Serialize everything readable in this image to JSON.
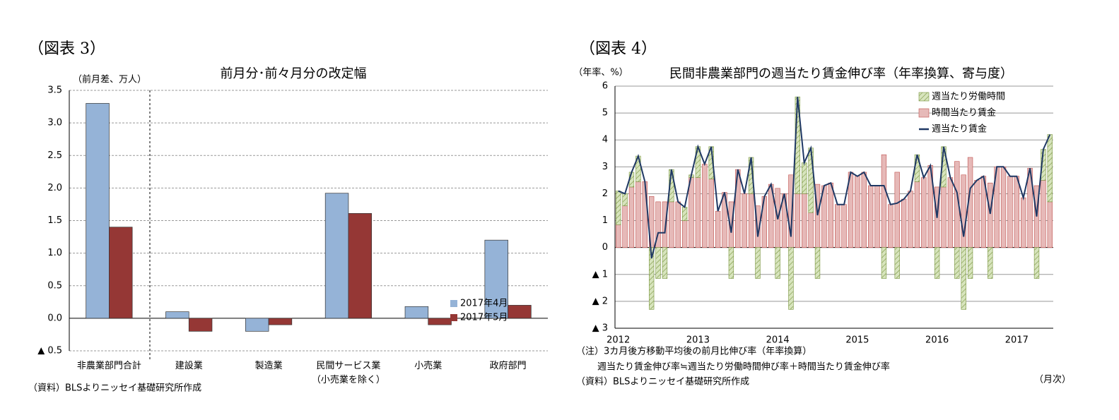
{
  "chart_data": [
    {
      "type": "bar",
      "heading": "（図表 3）",
      "title": "前月分･前々月分の改定幅",
      "y_label": "（前月差、万人）",
      "source": "（資料）BLSよりニッセイ基礎研究所作成",
      "categories": [
        "非農業部門合計",
        "建設業",
        "製造業",
        "民間サービス業\n（小売業を除く）",
        "小売業",
        "政府部門"
      ],
      "series": [
        {
          "name": "2017年4月",
          "color": "#95b3d7",
          "values": [
            3.3,
            0.1,
            -0.2,
            1.92,
            0.18,
            1.2
          ]
        },
        {
          "name": "2017年5月",
          "color": "#953735",
          "values": [
            1.4,
            -0.2,
            -0.1,
            1.61,
            -0.1,
            0.2
          ]
        }
      ],
      "ylim": [
        -0.5,
        3.5
      ],
      "yticks": [
        {
          "value": -0.5,
          "label": "▲ 0.5"
        },
        {
          "value": 0,
          "label": "0.0"
        },
        0.5,
        {
          "value": 1,
          "label": "1.0"
        },
        1.5,
        {
          "value": 2,
          "label": "2.0"
        },
        2.5,
        {
          "value": 3,
          "label": "3.0"
        },
        3.5
      ],
      "grid": true,
      "legend": "lower right"
    },
    {
      "type": "combo",
      "heading": "（図表 4）",
      "title": "民間非農業部門の週当たり賃金伸び率（年率換算、寄与度）",
      "y_label": "（年率、%）",
      "notes": [
        "（注）3カ月後方移動平均後の前月比伸び率（年率換算）",
        "週当たり賃金伸び率≒週当たり労働時間伸び率＋時間当たり賃金伸び率"
      ],
      "source": "（資料）BLSよりニッセイ基礎研究所作成",
      "x_label": "（月次）",
      "categories": [
        "2012",
        null,
        null,
        null,
        null,
        null,
        null,
        null,
        null,
        null,
        null,
        null,
        "2013",
        null,
        null,
        null,
        null,
        null,
        null,
        null,
        null,
        null,
        null,
        null,
        "2014",
        null,
        null,
        null,
        null,
        null,
        null,
        null,
        null,
        null,
        null,
        null,
        "2015",
        null,
        null,
        null,
        null,
        null,
        null,
        null,
        null,
        null,
        null,
        null,
        "2016",
        null,
        null,
        null,
        null,
        null,
        null,
        null,
        null,
        null,
        null,
        null,
        "2017",
        null,
        null,
        null,
        null,
        null
      ],
      "series": [
        {
          "name": "週当たり労働時間",
          "kind": "bar",
          "pattern": "hatch",
          "color": "#d7e4bd",
          "values": [
            1.25,
            0.45,
            0.55,
            0.95,
            0,
            -2.3,
            -1.15,
            -1.15,
            1.2,
            0,
            0.5,
            0.1,
            1.15,
            0,
            1.2,
            0,
            0,
            -1.15,
            0,
            0,
            1.35,
            -1.15,
            0,
            0,
            -1.15,
            0,
            -2.3,
            3.6,
            1.15,
            2.4,
            -1.15,
            0,
            0,
            0,
            0,
            0,
            0,
            0,
            0,
            0,
            -1.15,
            0,
            -1.15,
            0,
            0,
            1,
            0,
            0,
            -1.15,
            1.5,
            0,
            -1.15,
            -2.3,
            -1.15,
            0,
            0,
            -1.15,
            0,
            0,
            0,
            0,
            0,
            0,
            -1.15,
            1.15,
            2.5
          ]
        },
        {
          "name": "時間当たり賃金",
          "kind": "bar",
          "color": "#e6b9b8",
          "values": [
            0.85,
            1.55,
            2.25,
            2.45,
            2.45,
            1.9,
            1.7,
            1.7,
            1.7,
            1.7,
            1,
            2.6,
            2.6,
            3.1,
            2.55,
            1.35,
            2.05,
            1.7,
            2.9,
            2,
            2,
            1.55,
            1.9,
            2.35,
            2.2,
            2,
            2.7,
            2,
            2,
            1.3,
            2.35,
            2.3,
            2.4,
            1.6,
            1.6,
            2.8,
            2.65,
            2.8,
            2.3,
            2.3,
            3.45,
            1.6,
            2.8,
            1.8,
            2.1,
            2.45,
            2.6,
            3.05,
            2.25,
            2.25,
            2.6,
            3.2,
            2.7,
            3.35,
            2.5,
            2.65,
            2.4,
            3,
            3,
            2.65,
            2.65,
            1.85,
            2.95,
            2.3,
            2.5,
            1.7
          ]
        },
        {
          "name": "週当たり賃金",
          "kind": "line",
          "color": "#1f3864",
          "values": [
            2.1,
            2,
            2.8,
            3.4,
            2.45,
            -0.4,
            0.55,
            0.55,
            2.9,
            1.7,
            1.5,
            2.7,
            3.75,
            3.1,
            3.75,
            1.35,
            2.05,
            0.55,
            2.9,
            2,
            3.35,
            0.4,
            1.9,
            2.35,
            1.05,
            2,
            0.4,
            5.6,
            3.15,
            3.7,
            1.2,
            2.3,
            2.4,
            1.6,
            1.6,
            2.8,
            2.65,
            2.8,
            2.3,
            2.3,
            2.3,
            1.6,
            1.65,
            1.8,
            2.1,
            3.45,
            2.6,
            3.05,
            1.1,
            3.75,
            2.6,
            2.05,
            0.4,
            2.2,
            2.5,
            2.65,
            1.25,
            3,
            3,
            2.65,
            2.65,
            1.85,
            2.95,
            1.15,
            3.65,
            4.2
          ]
        }
      ],
      "ylim": [
        -3,
        6
      ],
      "yticks": [
        {
          "value": -3,
          "label": "▲ 3"
        },
        {
          "value": -2,
          "label": "▲ 2"
        },
        {
          "value": -1,
          "label": "▲ 1"
        },
        0,
        1,
        2,
        3,
        4,
        5,
        6
      ],
      "grid": true,
      "legend": "upper right"
    }
  ]
}
